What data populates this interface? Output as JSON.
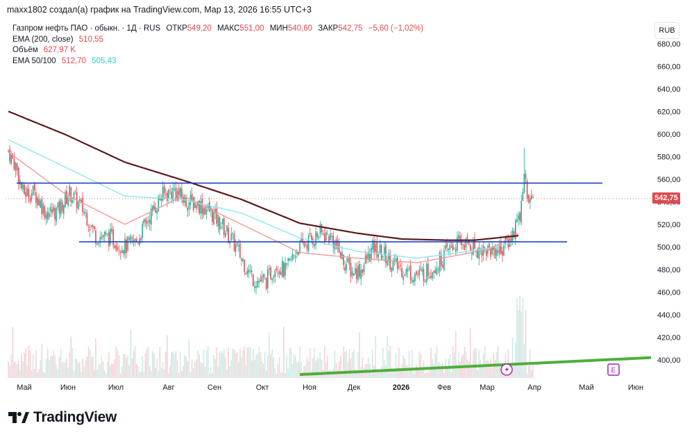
{
  "header": {
    "attribution": "maxx1802 создал(а) график на TradingView.com, Мар 13, 2026 16:55 UTC+3"
  },
  "legend": {
    "symbol": "Газпром нефть ПАО · обыкн. · 1Д · RUS",
    "open_label": "ОТКР",
    "open_value": "549,20",
    "high_label": "МАКС",
    "high_value": "551,00",
    "low_label": "МИН",
    "low_value": "540,60",
    "close_label": "ЗАКР",
    "close_value": "542,75",
    "change": "−5,60 (−1,02%)",
    "ema200_label": "EMA (200, close)",
    "ema200_value": "510,55",
    "volume_label": "Объём",
    "volume_value": "627,97 K",
    "ema50_100_label": "EMA 50/100",
    "ema50_value": "512,70",
    "ema100_value": "505,43"
  },
  "currency": "RUB",
  "last_price_label": "542,75",
  "brand": "TradingView",
  "colors": {
    "up": "#22ab94",
    "down": "#e0484e",
    "ema200": "#5b1a1a",
    "ema50": "#ef9a9a",
    "ema100": "#8ee7f0",
    "hline": "#1e40c8",
    "trend": "#4caf3a",
    "flash": "#9c27b0"
  },
  "chart_data": {
    "type": "candlestick",
    "title": "Газпром нефть ПАО · обыкн. · 1Д · RUS",
    "ylim": [
      384,
      694
    ],
    "y_ticks": [
      "680,00",
      "660,00",
      "640,00",
      "620,00",
      "600,00",
      "580,00",
      "560,00",
      "540,00",
      "520,00",
      "500,00",
      "480,00",
      "460,00",
      "440,00",
      "420,00",
      "400,00"
    ],
    "x_ticks": [
      "Май",
      "Июн",
      "Июл",
      "Авг",
      "Сен",
      "Окт",
      "Ноя",
      "Дек",
      "2026",
      "Фев",
      "Мар",
      "Апр",
      "Май",
      "Июн"
    ],
    "series": [
      {
        "name": "Price (approx. closes)",
        "points": [
          [
            0,
            585
          ],
          [
            5,
            572
          ],
          [
            10,
            548
          ],
          [
            18,
            548
          ],
          [
            26,
            530
          ],
          [
            34,
            532
          ],
          [
            42,
            548
          ],
          [
            52,
            532
          ],
          [
            60,
            510
          ],
          [
            70,
            508
          ],
          [
            80,
            500
          ],
          [
            88,
            505
          ],
          [
            96,
            525
          ],
          [
            105,
            545
          ],
          [
            114,
            550
          ],
          [
            122,
            540
          ],
          [
            130,
            538
          ],
          [
            138,
            532
          ],
          [
            146,
            520
          ],
          [
            154,
            505
          ],
          [
            160,
            490
          ],
          [
            168,
            472
          ],
          [
            176,
            468
          ],
          [
            184,
            485
          ],
          [
            190,
            478
          ],
          [
            198,
            498
          ],
          [
            206,
            505
          ],
          [
            214,
            512
          ],
          [
            222,
            508
          ],
          [
            230,
            488
          ],
          [
            236,
            478
          ],
          [
            242,
            480
          ],
          [
            250,
            498
          ],
          [
            258,
            493
          ],
          [
            266,
            483
          ],
          [
            274,
            478
          ],
          [
            282,
            475
          ],
          [
            290,
            480
          ],
          [
            298,
            490
          ],
          [
            304,
            500
          ],
          [
            310,
            504
          ],
          [
            316,
            502
          ],
          [
            322,
            498
          ],
          [
            330,
            497
          ],
          [
            338,
            498
          ],
          [
            345,
            508
          ],
          [
            351,
            530
          ],
          [
            354,
            560
          ],
          [
            356,
            547
          ],
          [
            360,
            543
          ]
        ]
      },
      {
        "name": "EMA 200",
        "points": [
          [
            0,
            620
          ],
          [
            40,
            599
          ],
          [
            80,
            575
          ],
          [
            120,
            559
          ],
          [
            160,
            542
          ],
          [
            200,
            521
          ],
          [
            240,
            512
          ],
          [
            270,
            507
          ],
          [
            300,
            506
          ],
          [
            320,
            506
          ],
          [
            350,
            510
          ]
        ]
      },
      {
        "name": "EMA 50",
        "points": [
          [
            0,
            584
          ],
          [
            40,
            546
          ],
          [
            80,
            520
          ],
          [
            120,
            545
          ],
          [
            160,
            520
          ],
          [
            200,
            495
          ],
          [
            240,
            490
          ],
          [
            280,
            486
          ],
          [
            310,
            493
          ],
          [
            330,
            498
          ],
          [
            350,
            512
          ]
        ]
      },
      {
        "name": "EMA 100",
        "points": [
          [
            0,
            595
          ],
          [
            40,
            570
          ],
          [
            80,
            545
          ],
          [
            120,
            542
          ],
          [
            160,
            530
          ],
          [
            200,
            508
          ],
          [
            240,
            496
          ],
          [
            280,
            490
          ],
          [
            310,
            495
          ],
          [
            330,
            499
          ],
          [
            350,
            505
          ]
        ]
      }
    ],
    "horizontal_levels": [
      556.5,
      504.5
    ],
    "trendline": [
      [
        200,
        387
      ],
      [
        470,
        402
      ]
    ],
    "last_price": 542.75
  }
}
